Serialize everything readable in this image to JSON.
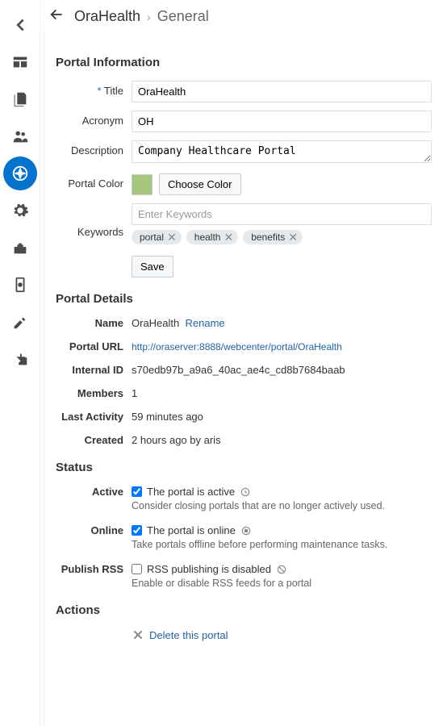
{
  "breadcrumb": {
    "item1": "OraHealth",
    "item2": "General"
  },
  "sections": {
    "portal_info": "Portal Information",
    "portal_details": "Portal Details",
    "status": "Status",
    "actions": "Actions"
  },
  "labels": {
    "title": "Title",
    "acronym": "Acronym",
    "description": "Description",
    "portal_color": "Portal Color",
    "keywords": "Keywords",
    "name": "Name",
    "portal_url": "Portal URL",
    "internal_id": "Internal ID",
    "members": "Members",
    "last_activity": "Last Activity",
    "created": "Created",
    "active": "Active",
    "online": "Online",
    "publish_rss": "Publish RSS"
  },
  "values": {
    "title": "OraHealth",
    "acronym": "OH",
    "description": "Company Healthcare Portal",
    "portal_color": "#a7c77f",
    "keywords_placeholder": "Enter Keywords",
    "keywords": [
      "portal",
      "health",
      "benefits"
    ],
    "name": "OraHealth",
    "portal_url": "http://oraserver:8888/webcenter/portal/OraHealth",
    "internal_id": "s70edb97b_a9a6_40ac_ae4c_cd8b7684baab",
    "members": "1",
    "last_activity": "59 minutes ago",
    "created": "2 hours ago by aris"
  },
  "buttons": {
    "choose_color": "Choose Color",
    "save": "Save",
    "rename": "Rename",
    "delete": "Delete this portal"
  },
  "status": {
    "active_text": "The portal is active",
    "active_help": "Consider closing portals that are no longer actively used.",
    "active_checked": true,
    "online_text": "The portal is online",
    "online_help": "Take portals offline before performing maintenance tasks.",
    "online_checked": true,
    "rss_text": "RSS publishing is disabled",
    "rss_help": "Enable or disable RSS feeds for a portal",
    "rss_checked": false
  }
}
